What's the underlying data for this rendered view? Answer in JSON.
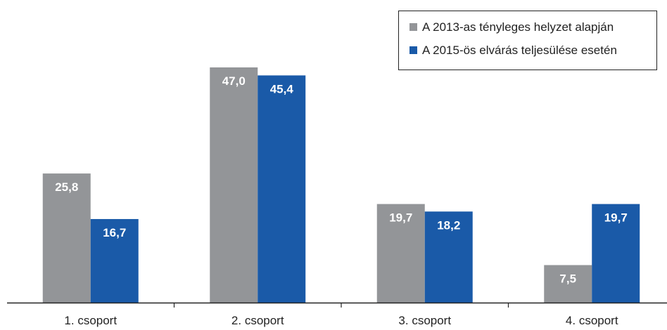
{
  "chart_data": {
    "type": "bar",
    "categories": [
      "1. csoport",
      "2. csoport",
      "3. csoport",
      "4. csoport"
    ],
    "series": [
      {
        "name": "A 2013-as tényleges helyzet alapján",
        "values": [
          25.8,
          47.0,
          19.7,
          7.5
        ],
        "labels": [
          "25,8",
          "47,0",
          "19,7",
          "7,5"
        ],
        "color": "#939598"
      },
      {
        "name": "A 2015-ös elvárás teljesülése esetén",
        "values": [
          16.7,
          45.4,
          18.2,
          19.7
        ],
        "labels": [
          "16,7",
          "45,4",
          "18,2",
          "19,7"
        ],
        "color": "#1a5aa8"
      }
    ],
    "ylim": [
      0,
      50
    ],
    "grid": false,
    "legend_position": "top-right"
  }
}
